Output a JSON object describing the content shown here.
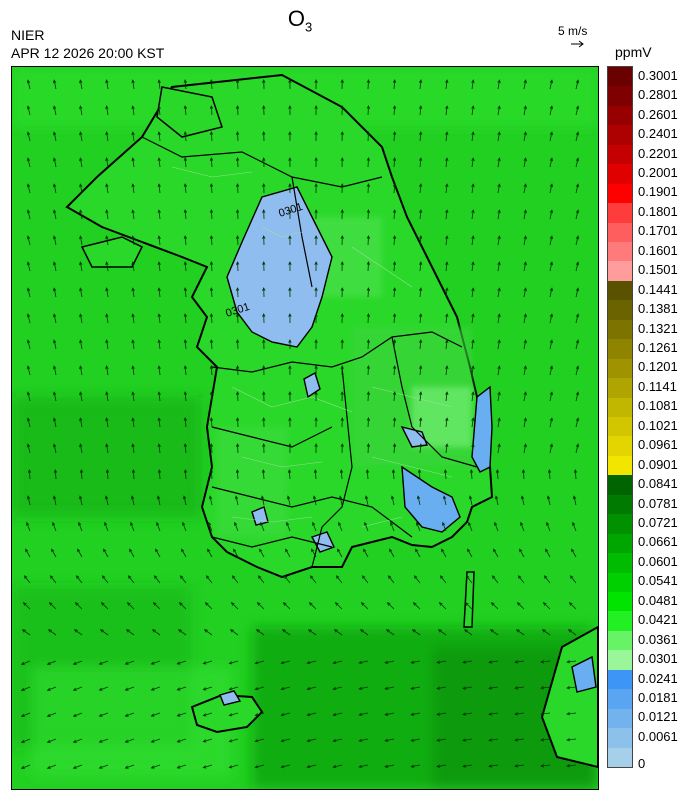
{
  "title": {
    "main": "O",
    "sub": "3"
  },
  "agency": "NIER",
  "datetime": "APR 12 2026 20:00 KST",
  "wind_reference": {
    "label": "5 m/s",
    "icon": "arrow-right-icon"
  },
  "unit": "ppmV",
  "colorbar": {
    "labels": [
      "0.3001",
      "0.2801",
      "0.2601",
      "0.2401",
      "0.2201",
      "0.2001",
      "0.1901",
      "0.1801",
      "0.1701",
      "0.1601",
      "0.1501",
      "0.1441",
      "0.1381",
      "0.1321",
      "0.1261",
      "0.1201",
      "0.1141",
      "0.1081",
      "0.1021",
      "0.0961",
      "0.0901",
      "0.0841",
      "0.0781",
      "0.0721",
      "0.0661",
      "0.0601",
      "0.0541",
      "0.0481",
      "0.0421",
      "0.0361",
      "0.0301",
      "0.0241",
      "0.0181",
      "0.0121",
      "0.0061",
      "0"
    ],
    "colors": [
      "#6a0000",
      "#7f0000",
      "#960000",
      "#ad0000",
      "#c40000",
      "#e00000",
      "#ff0000",
      "#ff3c3c",
      "#ff5e5e",
      "#ff7b7b",
      "#ff9c9c",
      "#5a5200",
      "#6b6300",
      "#7d7300",
      "#8e8400",
      "#9f9400",
      "#b0a500",
      "#c1b600",
      "#d2c600",
      "#e3d600",
      "#f2e600",
      "#006400",
      "#007a00",
      "#009000",
      "#00a600",
      "#00bc00",
      "#00d000",
      "#00e400",
      "#22f022",
      "#66f466",
      "#99f799",
      "#3d95f5",
      "#5aa5f2",
      "#72b3ee",
      "#8bc1eb",
      "#a6d0ea"
    ]
  },
  "map_contour_labels": [
    "0301",
    "0301"
  ]
}
